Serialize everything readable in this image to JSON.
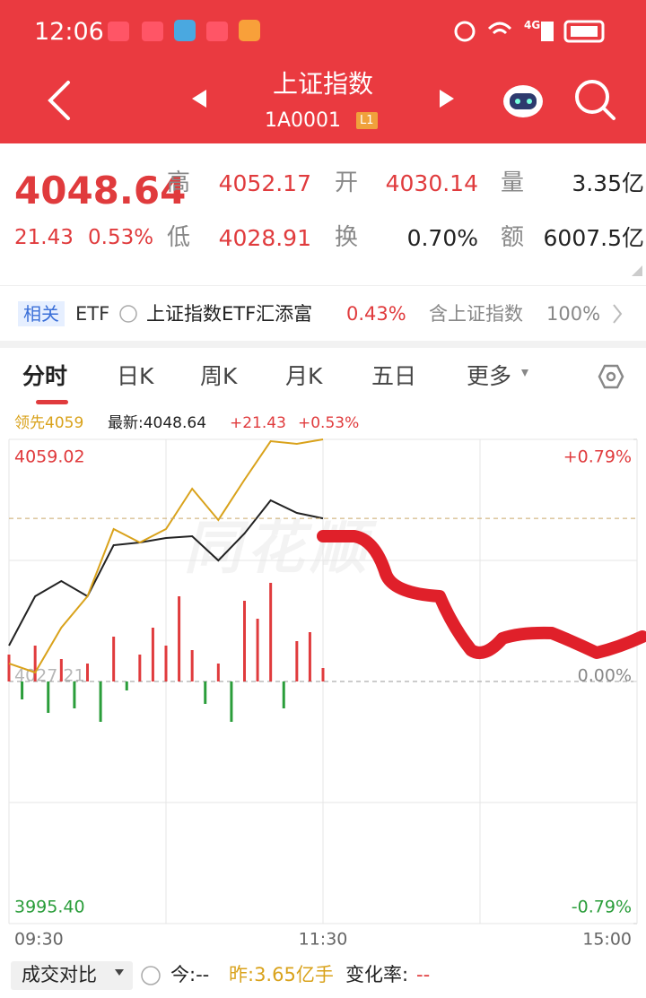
{
  "status_bar": {
    "time": "12:06",
    "network": "4G"
  },
  "header": {
    "title": "上证指数",
    "code": "1A0001",
    "level": "L1"
  },
  "quote": {
    "price": "4048.64",
    "change": "21.43",
    "change_pct": "0.53%",
    "stats": [
      {
        "label": "高",
        "value": "4052.17"
      },
      {
        "label": "开",
        "value": "4030.14"
      },
      {
        "label": "量",
        "value": "3.35亿"
      },
      {
        "label": "低",
        "value": "4028.91"
      },
      {
        "label": "换",
        "value": "0.70%"
      },
      {
        "label": "额",
        "value": "6007.5亿"
      }
    ]
  },
  "related": {
    "badge": "相关",
    "etf": "ETF",
    "name": "上证指数ETF汇添富",
    "pct": "0.43%",
    "holding_label": "含上证指数",
    "holding_pct": "100%"
  },
  "tabs": [
    "分时",
    "日K",
    "周K",
    "月K",
    "五日",
    "更多"
  ],
  "watermark": "同花顺",
  "chart_data": {
    "type": "line",
    "x": [
      0,
      10,
      20,
      30,
      40,
      50,
      60,
      70,
      80,
      90,
      100,
      110,
      120
    ],
    "series": [
      {
        "name": "最新:4048.64",
        "color": "#222222",
        "values": [
          4031.92,
          4038.4,
          4040.4,
          4038.4,
          4045.12,
          4045.47,
          4046.06,
          4046.29,
          4043.11,
          4046.65,
          4051.01,
          4049.36,
          4048.64
        ]
      },
      {
        "name": "领先4059",
        "color": "#d9a21b",
        "values": [
          4029.57,
          4028.39,
          4034.28,
          4038.4,
          4047.24,
          4045.47,
          4047.24,
          4052.54,
          4048.42,
          4053.72,
          4058.78,
          4058.43,
          4059.02
        ]
      }
    ],
    "change": "+21.43",
    "change_pct": "+0.53%",
    "xlim": [
      0,
      240
    ],
    "xticks": [
      {
        "value": 0,
        "label": "09:30"
      },
      {
        "value": 120,
        "label": "11:30"
      },
      {
        "value": 240,
        "label": "15:00"
      }
    ],
    "ylim": [
      3995.4,
      4059.02
    ],
    "yticks": [
      {
        "value": 3995.4,
        "label": "3995.40"
      },
      4027.21,
      4059.02
    ],
    "y2lim": [
      -0.79,
      0.79
    ],
    "y2ticks": [
      {
        "value": -0.79,
        "label": "-0.79%"
      },
      {
        "value": 0,
        "label": "0.00%"
      },
      {
        "value": 0.79,
        "label": "+0.79%"
      }
    ],
    "volume": {
      "x": [
        0,
        5,
        10,
        15,
        20,
        25,
        30,
        35,
        40,
        45,
        50,
        55,
        60,
        65,
        70,
        75,
        80,
        85,
        90,
        95,
        100,
        105,
        110,
        115,
        120
      ],
      "values": [
        30,
        -20,
        40,
        -35,
        25,
        -30,
        20,
        -45,
        50,
        -10,
        30,
        60,
        40,
        95,
        35,
        -25,
        20,
        -45,
        90,
        70,
        110,
        -30,
        45,
        55,
        15
      ],
      "ylim": [
        -270,
        270
      ],
      "up_color": "#e03b3d",
      "down_color": "#2a9d3a"
    }
  },
  "compare": {
    "label": "成交对比",
    "today": "今:--",
    "yesterday": "昨:3.65亿手",
    "change_label": "变化率:",
    "change_value": "--"
  }
}
